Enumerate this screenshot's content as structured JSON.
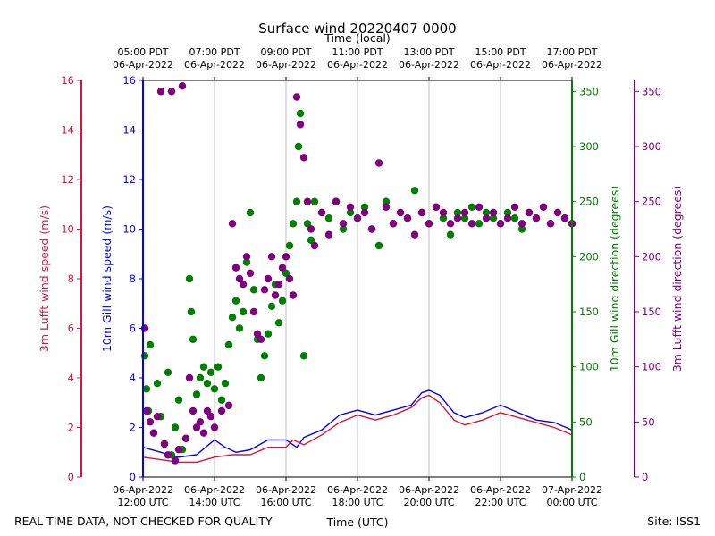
{
  "chart_data": {
    "type": "scatter",
    "title": "Surface wind 20220407 0000",
    "top_axis": {
      "label": "Time (local)",
      "ticks": [
        {
          "line1": "05:00 PDT",
          "line2": "06-Apr-2022"
        },
        {
          "line1": "07:00 PDT",
          "line2": "06-Apr-2022"
        },
        {
          "line1": "09:00 PDT",
          "line2": "06-Apr-2022"
        },
        {
          "line1": "11:00 PDT",
          "line2": "06-Apr-2022"
        },
        {
          "line1": "13:00 PDT",
          "line2": "06-Apr-2022"
        },
        {
          "line1": "15:00 PDT",
          "line2": "06-Apr-2022"
        },
        {
          "line1": "17:00 PDT",
          "line2": "06-Apr-2022"
        }
      ]
    },
    "bottom_axis": {
      "label": "Time (UTC)",
      "xlim_hours_utc": [
        12,
        24
      ],
      "ticks": [
        {
          "line1": "06-Apr-2022",
          "line2": "12:00 UTC"
        },
        {
          "line1": "06-Apr-2022",
          "line2": "14:00 UTC"
        },
        {
          "line1": "06-Apr-2022",
          "line2": "16:00 UTC"
        },
        {
          "line1": "06-Apr-2022",
          "line2": "18:00 UTC"
        },
        {
          "line1": "06-Apr-2022",
          "line2": "20:00 UTC"
        },
        {
          "line1": "06-Apr-2022",
          "line2": "22:00 UTC"
        },
        {
          "line1": "07-Apr-2022",
          "line2": "00:00 UTC"
        }
      ]
    },
    "left_outer_axis": {
      "label": "3m Lufft wind speed (m/s)",
      "color": "#dc143c",
      "ylim": [
        0,
        16
      ],
      "ticks": [
        "0",
        "2",
        "4",
        "6",
        "8",
        "10",
        "12",
        "14",
        "16"
      ]
    },
    "left_inner_axis": {
      "label": "10m Gill wind speed (m/s)",
      "color": "#0000ff",
      "ylim": [
        0,
        16
      ],
      "ticks": [
        "0",
        "2",
        "4",
        "6",
        "8",
        "10",
        "12",
        "14",
        "16"
      ]
    },
    "right_inner_axis": {
      "label": "10m Gill wind direction (degrees)",
      "color": "#008000",
      "ylim": [
        0,
        360
      ],
      "ticks": [
        "0",
        "50",
        "100",
        "150",
        "200",
        "250",
        "300",
        "350"
      ]
    },
    "right_outer_axis": {
      "label": "3m Lufft wind direction (degrees)",
      "color": "#800080",
      "ylim": [
        0,
        360
      ],
      "ticks": [
        "0",
        "50",
        "100",
        "150",
        "200",
        "250",
        "300",
        "350"
      ]
    },
    "series": [
      {
        "name": "10m Gill wind speed",
        "kind": "line",
        "color": "#0000ff",
        "axis": "speed",
        "points": [
          [
            12.0,
            1.2
          ],
          [
            12.5,
            1.0
          ],
          [
            13.0,
            0.8
          ],
          [
            13.5,
            0.9
          ],
          [
            14.0,
            1.5
          ],
          [
            14.3,
            1.2
          ],
          [
            14.6,
            1.0
          ],
          [
            15.0,
            1.1
          ],
          [
            15.5,
            1.5
          ],
          [
            16.0,
            1.5
          ],
          [
            16.3,
            1.2
          ],
          [
            16.5,
            1.6
          ],
          [
            17.0,
            1.9
          ],
          [
            17.5,
            2.5
          ],
          [
            18.0,
            2.7
          ],
          [
            18.5,
            2.5
          ],
          [
            19.0,
            2.7
          ],
          [
            19.5,
            2.9
          ],
          [
            19.8,
            3.4
          ],
          [
            20.0,
            3.5
          ],
          [
            20.3,
            3.3
          ],
          [
            20.7,
            2.6
          ],
          [
            21.0,
            2.4
          ],
          [
            21.5,
            2.6
          ],
          [
            22.0,
            2.9
          ],
          [
            22.5,
            2.6
          ],
          [
            23.0,
            2.3
          ],
          [
            23.5,
            2.2
          ],
          [
            24.0,
            1.9
          ]
        ]
      },
      {
        "name": "3m Lufft wind speed",
        "kind": "line",
        "color": "#dc143c",
        "axis": "speed",
        "points": [
          [
            12.0,
            0.8
          ],
          [
            12.5,
            0.7
          ],
          [
            13.0,
            0.6
          ],
          [
            13.5,
            0.6
          ],
          [
            14.0,
            0.8
          ],
          [
            14.5,
            0.9
          ],
          [
            15.0,
            0.9
          ],
          [
            15.5,
            1.2
          ],
          [
            16.0,
            1.2
          ],
          [
            16.2,
            1.5
          ],
          [
            16.5,
            1.3
          ],
          [
            17.0,
            1.7
          ],
          [
            17.5,
            2.2
          ],
          [
            18.0,
            2.5
          ],
          [
            18.5,
            2.3
          ],
          [
            19.0,
            2.5
          ],
          [
            19.5,
            2.8
          ],
          [
            19.8,
            3.2
          ],
          [
            20.0,
            3.3
          ],
          [
            20.3,
            3.0
          ],
          [
            20.7,
            2.3
          ],
          [
            21.0,
            2.1
          ],
          [
            21.5,
            2.3
          ],
          [
            22.0,
            2.6
          ],
          [
            22.5,
            2.4
          ],
          [
            23.0,
            2.2
          ],
          [
            23.5,
            2.0
          ],
          [
            24.0,
            1.7
          ]
        ]
      },
      {
        "name": "10m Gill wind direction",
        "kind": "scatter",
        "color": "#008000",
        "axis": "direction",
        "points": [
          [
            12.05,
            110
          ],
          [
            12.1,
            80
          ],
          [
            12.15,
            60
          ],
          [
            12.2,
            120
          ],
          [
            12.3,
            40
          ],
          [
            12.4,
            85
          ],
          [
            12.5,
            55
          ],
          [
            12.6,
            30
          ],
          [
            12.7,
            95
          ],
          [
            12.8,
            20
          ],
          [
            12.9,
            45
          ],
          [
            13.0,
            70
          ],
          [
            13.1,
            25
          ],
          [
            13.2,
            35
          ],
          [
            13.3,
            180
          ],
          [
            13.35,
            150
          ],
          [
            13.4,
            125
          ],
          [
            13.5,
            75
          ],
          [
            13.6,
            90
          ],
          [
            13.7,
            100
          ],
          [
            13.8,
            85
          ],
          [
            13.9,
            95
          ],
          [
            14.0,
            80
          ],
          [
            14.1,
            100
          ],
          [
            14.2,
            70
          ],
          [
            14.3,
            85
          ],
          [
            14.4,
            120
          ],
          [
            14.5,
            145
          ],
          [
            14.6,
            160
          ],
          [
            14.7,
            135
          ],
          [
            14.8,
            150
          ],
          [
            14.9,
            195
          ],
          [
            15.0,
            240
          ],
          [
            15.1,
            170
          ],
          [
            15.2,
            125
          ],
          [
            15.3,
            90
          ],
          [
            15.4,
            110
          ],
          [
            15.5,
            130
          ],
          [
            15.6,
            155
          ],
          [
            15.7,
            175
          ],
          [
            15.8,
            140
          ],
          [
            15.9,
            160
          ],
          [
            16.0,
            185
          ],
          [
            16.1,
            210
          ],
          [
            16.2,
            230
          ],
          [
            16.3,
            250
          ],
          [
            16.35,
            300
          ],
          [
            16.4,
            330
          ],
          [
            16.5,
            110
          ],
          [
            16.6,
            230
          ],
          [
            16.7,
            215
          ],
          [
            16.8,
            250
          ],
          [
            17.0,
            240
          ],
          [
            17.2,
            235
          ],
          [
            17.4,
            250
          ],
          [
            17.6,
            225
          ],
          [
            17.8,
            240
          ],
          [
            18.0,
            235
          ],
          [
            18.2,
            245
          ],
          [
            18.4,
            225
          ],
          [
            18.6,
            210
          ],
          [
            18.8,
            250
          ],
          [
            19.0,
            230
          ],
          [
            19.2,
            240
          ],
          [
            19.4,
            235
          ],
          [
            19.6,
            260
          ],
          [
            19.8,
            240
          ],
          [
            20.0,
            230
          ],
          [
            20.2,
            245
          ],
          [
            20.4,
            235
          ],
          [
            20.6,
            220
          ],
          [
            20.8,
            240
          ],
          [
            21.0,
            235
          ],
          [
            21.2,
            245
          ],
          [
            21.4,
            230
          ],
          [
            21.6,
            240
          ],
          [
            21.8,
            235
          ],
          [
            22.0,
            230
          ],
          [
            22.2,
            240
          ],
          [
            22.4,
            235
          ],
          [
            22.6,
            225
          ],
          [
            22.8,
            240
          ],
          [
            23.0,
            235
          ],
          [
            23.2,
            245
          ],
          [
            23.4,
            230
          ],
          [
            23.6,
            240
          ],
          [
            23.8,
            235
          ],
          [
            24.0,
            230
          ]
        ]
      },
      {
        "name": "3m Lufft wind direction",
        "kind": "scatter",
        "color": "#800080",
        "axis": "direction",
        "points": [
          [
            12.05,
            135
          ],
          [
            12.1,
            60
          ],
          [
            12.2,
            50
          ],
          [
            12.3,
            40
          ],
          [
            12.4,
            55
          ],
          [
            12.5,
            350
          ],
          [
            12.6,
            30
          ],
          [
            12.7,
            20
          ],
          [
            12.8,
            350
          ],
          [
            12.9,
            15
          ],
          [
            13.0,
            25
          ],
          [
            13.1,
            355
          ],
          [
            13.2,
            35
          ],
          [
            13.3,
            90
          ],
          [
            13.4,
            60
          ],
          [
            13.5,
            45
          ],
          [
            13.6,
            50
          ],
          [
            13.7,
            40
          ],
          [
            13.8,
            60
          ],
          [
            13.9,
            55
          ],
          [
            14.0,
            45
          ],
          [
            14.2,
            60
          ],
          [
            14.4,
            65
          ],
          [
            14.5,
            230
          ],
          [
            14.6,
            190
          ],
          [
            14.7,
            180
          ],
          [
            14.8,
            175
          ],
          [
            14.9,
            200
          ],
          [
            15.0,
            185
          ],
          [
            15.1,
            150
          ],
          [
            15.2,
            130
          ],
          [
            15.3,
            125
          ],
          [
            15.4,
            170
          ],
          [
            15.5,
            180
          ],
          [
            15.6,
            200
          ],
          [
            15.7,
            165
          ],
          [
            15.8,
            175
          ],
          [
            15.9,
            190
          ],
          [
            16.0,
            200
          ],
          [
            16.1,
            180
          ],
          [
            16.2,
            165
          ],
          [
            16.3,
            345
          ],
          [
            16.4,
            320
          ],
          [
            16.5,
            290
          ],
          [
            16.6,
            250
          ],
          [
            16.7,
            225
          ],
          [
            16.8,
            210
          ],
          [
            17.0,
            240
          ],
          [
            17.2,
            220
          ],
          [
            17.4,
            250
          ],
          [
            17.6,
            230
          ],
          [
            17.8,
            245
          ],
          [
            18.0,
            235
          ],
          [
            18.2,
            240
          ],
          [
            18.4,
            225
          ],
          [
            18.6,
            285
          ],
          [
            18.8,
            245
          ],
          [
            19.0,
            230
          ],
          [
            19.2,
            240
          ],
          [
            19.4,
            235
          ],
          [
            19.6,
            220
          ],
          [
            19.8,
            240
          ],
          [
            20.0,
            230
          ],
          [
            20.2,
            245
          ],
          [
            20.4,
            240
          ],
          [
            20.6,
            230
          ],
          [
            20.8,
            235
          ],
          [
            21.0,
            240
          ],
          [
            21.2,
            230
          ],
          [
            21.4,
            245
          ],
          [
            21.6,
            235
          ],
          [
            21.8,
            240
          ],
          [
            22.0,
            230
          ],
          [
            22.2,
            235
          ],
          [
            22.4,
            245
          ],
          [
            22.6,
            230
          ],
          [
            22.8,
            240
          ],
          [
            23.0,
            235
          ],
          [
            23.2,
            245
          ],
          [
            23.4,
            230
          ],
          [
            23.6,
            240
          ],
          [
            23.8,
            235
          ],
          [
            24.0,
            230
          ]
        ]
      }
    ],
    "footer_left": "REAL TIME DATA, NOT CHECKED FOR QUALITY",
    "footer_right": "Site: ISS1"
  }
}
